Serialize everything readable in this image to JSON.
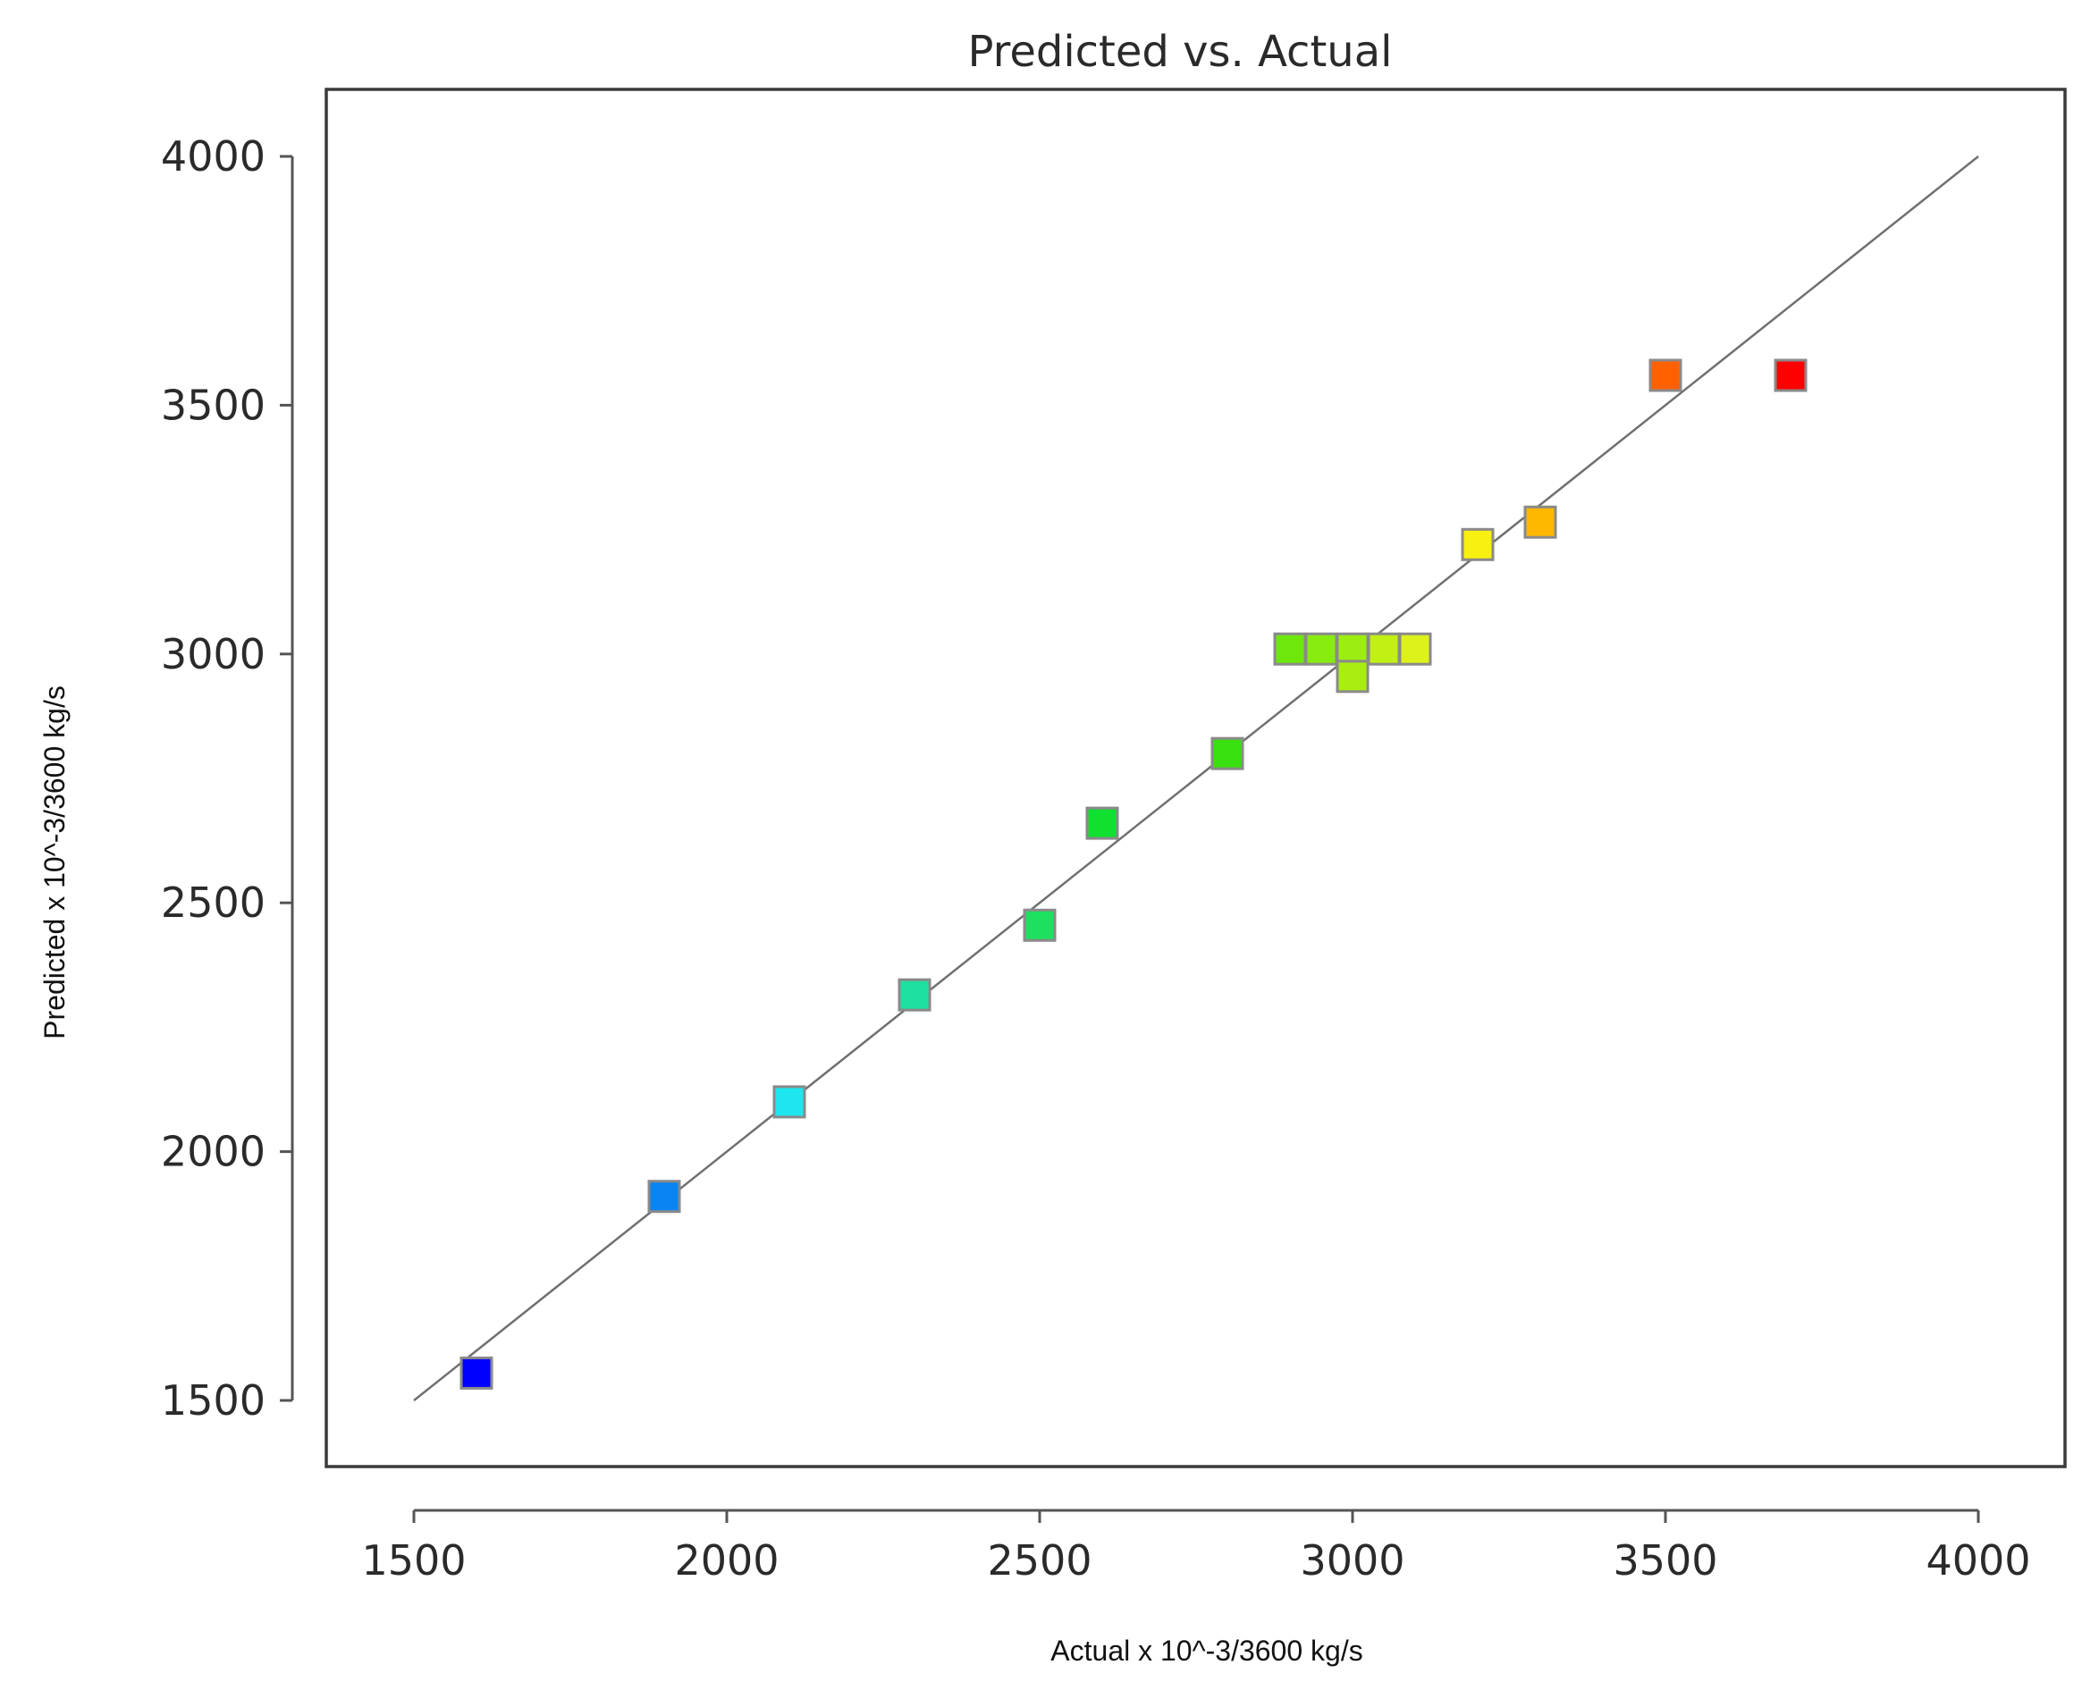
{
  "chart_data": {
    "type": "scatter",
    "title": "Predicted vs. Actual",
    "xlabel": "Actual x 10^-3/3600 kg/s",
    "ylabel": "Predicted x 10^-3/3600 kg/s",
    "xlim": [
      1500,
      4000
    ],
    "ylim": [
      1500,
      4000
    ],
    "x_ticks": [
      "1500",
      "2000",
      "2500",
      "3000",
      "3500",
      "4000"
    ],
    "y_ticks": [
      "1500",
      "2000",
      "2500",
      "3000",
      "3500",
      "4000"
    ],
    "reference_line": {
      "from": [
        1500,
        1500
      ],
      "to": [
        4000,
        4000
      ],
      "color": "#707070"
    },
    "grid": false,
    "points": [
      {
        "x": 1600,
        "y": 1555,
        "color": "#0000ff"
      },
      {
        "x": 1900,
        "y": 1910,
        "color": "#0a84f0"
      },
      {
        "x": 2100,
        "y": 2100,
        "color": "#1ee6ee"
      },
      {
        "x": 2300,
        "y": 2315,
        "color": "#1ee0a0"
      },
      {
        "x": 2500,
        "y": 2455,
        "color": "#1ee060"
      },
      {
        "x": 2600,
        "y": 2660,
        "color": "#10e030"
      },
      {
        "x": 2800,
        "y": 2800,
        "color": "#38e010"
      },
      {
        "x": 2900,
        "y": 3010,
        "color": "#6ee80c"
      },
      {
        "x": 2950,
        "y": 3010,
        "color": "#88ec10"
      },
      {
        "x": 3000,
        "y": 3010,
        "color": "#9cee10"
      },
      {
        "x": 3000,
        "y": 2955,
        "color": "#a8ee10"
      },
      {
        "x": 3050,
        "y": 3010,
        "color": "#c0f014"
      },
      {
        "x": 3100,
        "y": 3010,
        "color": "#ddf21a"
      },
      {
        "x": 3200,
        "y": 3220,
        "color": "#f8f010"
      },
      {
        "x": 3300,
        "y": 3265,
        "color": "#ffb800"
      },
      {
        "x": 3500,
        "y": 3560,
        "color": "#ff6000"
      },
      {
        "x": 3700,
        "y": 3560,
        "color": "#ff0000"
      }
    ]
  }
}
